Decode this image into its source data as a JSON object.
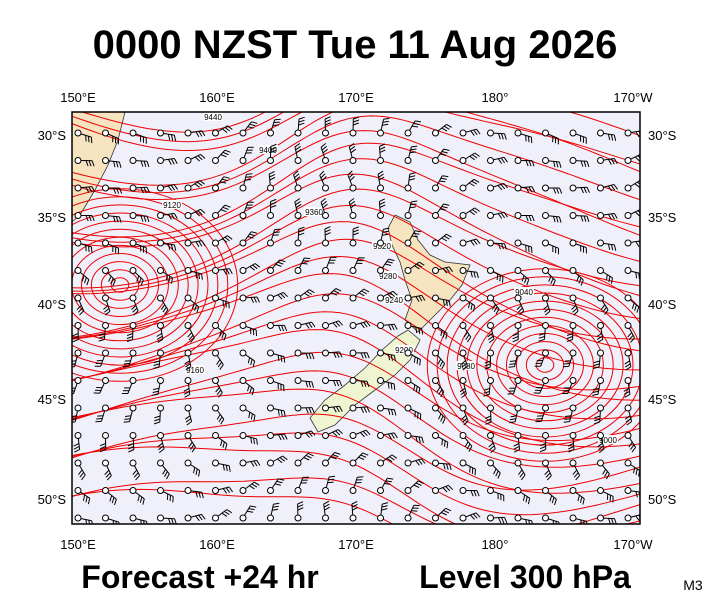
{
  "header": {
    "title": "0000 NZST Tue 11 Aug 2026"
  },
  "axes": {
    "top": [
      "150°E",
      "160°E",
      "170°E",
      "180°",
      "170°W"
    ],
    "bottom": [
      "150°E",
      "160°E",
      "170°E",
      "180°",
      "170°W"
    ],
    "left": [
      "30°S",
      "35°S",
      "40°S",
      "45°S",
      "50°S"
    ],
    "right": [
      "30°S",
      "35°S",
      "40°S",
      "45°S",
      "50°S"
    ]
  },
  "contour_labels": [
    "9440",
    "9400",
    "9360",
    "9320",
    "9280",
    "9240",
    "9200",
    "9160",
    "9120",
    "9080",
    "9040",
    "9000"
  ],
  "footer": {
    "forecast": "Forecast +24 hr",
    "level": "Level 300 hPa",
    "model": "M3"
  }
}
